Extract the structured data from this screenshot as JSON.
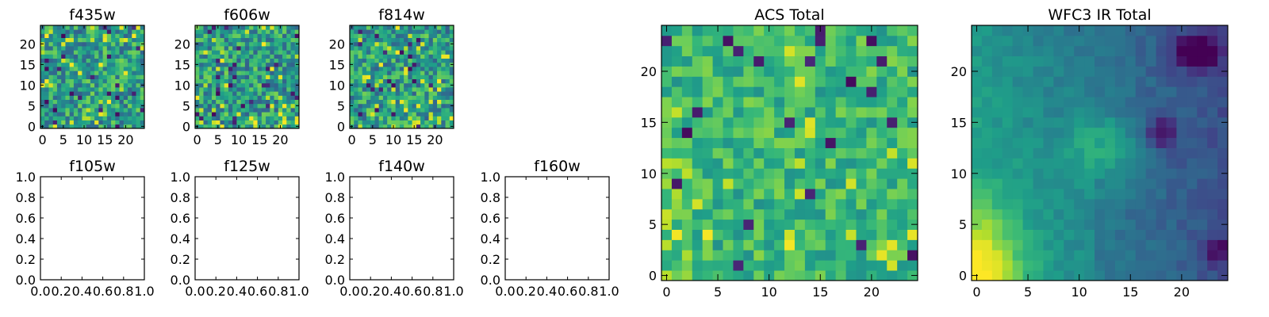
{
  "figure": {
    "panels": [
      {
        "id": "f435w",
        "title": "f435w",
        "kind": "heatmap",
        "seed": 11,
        "field": "noise"
      },
      {
        "id": "f606w",
        "title": "f606w",
        "kind": "heatmap",
        "seed": 23,
        "field": "noise"
      },
      {
        "id": "f814w",
        "title": "f814w",
        "kind": "heatmap",
        "seed": 37,
        "field": "noise"
      },
      {
        "id": "f105w",
        "title": "f105w",
        "kind": "empty"
      },
      {
        "id": "f125w",
        "title": "f125w",
        "kind": "empty"
      },
      {
        "id": "f140w",
        "title": "f140w",
        "kind": "empty"
      },
      {
        "id": "f160w",
        "title": "f160w",
        "kind": "empty"
      },
      {
        "id": "acs-total",
        "title": "ACS Total",
        "kind": "heatmap",
        "seed": 51,
        "field": "acs"
      },
      {
        "id": "wfc3-ir-total",
        "title": "WFC3 IR Total",
        "kind": "heatmap",
        "seed": 77,
        "field": "ir"
      }
    ]
  },
  "chart_data": [
    {
      "type": "heatmap",
      "title": "f435w",
      "grid": [
        25,
        25
      ],
      "xlim": [
        -0.5,
        24.5
      ],
      "ylim": [
        -0.5,
        24.5
      ],
      "xticks": [
        0,
        5,
        10,
        15,
        20
      ],
      "yticks": [
        0,
        5,
        10,
        15,
        20
      ],
      "colormap": "viridis"
    },
    {
      "type": "heatmap",
      "title": "f606w",
      "grid": [
        25,
        25
      ],
      "xlim": [
        -0.5,
        24.5
      ],
      "ylim": [
        -0.5,
        24.5
      ],
      "xticks": [
        0,
        5,
        10,
        15,
        20
      ],
      "yticks": [
        0,
        5,
        10,
        15,
        20
      ],
      "colormap": "viridis"
    },
    {
      "type": "heatmap",
      "title": "f814w",
      "grid": [
        25,
        25
      ],
      "xlim": [
        -0.5,
        24.5
      ],
      "ylim": [
        -0.5,
        24.5
      ],
      "xticks": [
        0,
        5,
        10,
        15,
        20
      ],
      "yticks": [
        0,
        5,
        10,
        15,
        20
      ],
      "colormap": "viridis"
    },
    {
      "type": "scatter",
      "title": "f105w",
      "x": [],
      "y": [],
      "xlim": [
        0,
        1
      ],
      "ylim": [
        0,
        1
      ],
      "xticks": [
        "0.0",
        "0.2",
        "0.4",
        "0.6",
        "0.8",
        "1.0"
      ],
      "yticks": [
        "0.0",
        "0.2",
        "0.4",
        "0.6",
        "0.8",
        "1.0"
      ]
    },
    {
      "type": "scatter",
      "title": "f125w",
      "x": [],
      "y": [],
      "xlim": [
        0,
        1
      ],
      "ylim": [
        0,
        1
      ],
      "xticks": [
        "0.0",
        "0.2",
        "0.4",
        "0.6",
        "0.8",
        "1.0"
      ],
      "yticks": [
        "0.0",
        "0.2",
        "0.4",
        "0.6",
        "0.8",
        "1.0"
      ]
    },
    {
      "type": "scatter",
      "title": "f140w",
      "x": [],
      "y": [],
      "xlim": [
        0,
        1
      ],
      "ylim": [
        0,
        1
      ],
      "xticks": [
        "0.0",
        "0.2",
        "0.4",
        "0.6",
        "0.8",
        "1.0"
      ],
      "yticks": [
        "0.0",
        "0.2",
        "0.4",
        "0.6",
        "0.8",
        "1.0"
      ]
    },
    {
      "type": "scatter",
      "title": "f160w",
      "x": [],
      "y": [],
      "xlim": [
        0,
        1
      ],
      "ylim": [
        0,
        1
      ],
      "xticks": [
        "0.0",
        "0.2",
        "0.4",
        "0.6",
        "0.8",
        "1.0"
      ],
      "yticks": [
        "0.0",
        "0.2",
        "0.4",
        "0.6",
        "0.8",
        "1.0"
      ]
    },
    {
      "type": "heatmap",
      "title": "ACS Total",
      "grid": [
        25,
        25
      ],
      "xlim": [
        -0.5,
        24.5
      ],
      "ylim": [
        -0.5,
        24.5
      ],
      "xticks": [
        0,
        5,
        10,
        15,
        20
      ],
      "yticks": [
        0,
        5,
        10,
        15,
        20
      ],
      "colormap": "viridis"
    },
    {
      "type": "heatmap",
      "title": "WFC3 IR Total",
      "grid": [
        25,
        25
      ],
      "xlim": [
        -0.5,
        24.5
      ],
      "ylim": [
        -0.5,
        24.5
      ],
      "xticks": [
        0,
        5,
        10,
        15,
        20
      ],
      "yticks": [
        0,
        5,
        10,
        15,
        20
      ],
      "colormap": "viridis"
    }
  ],
  "colormap": {
    "name": "viridis",
    "stops": [
      "#440154",
      "#482878",
      "#3e4989",
      "#31688e",
      "#26828e",
      "#1f9e89",
      "#35b779",
      "#6ece58",
      "#b5de2b",
      "#fde725"
    ]
  }
}
